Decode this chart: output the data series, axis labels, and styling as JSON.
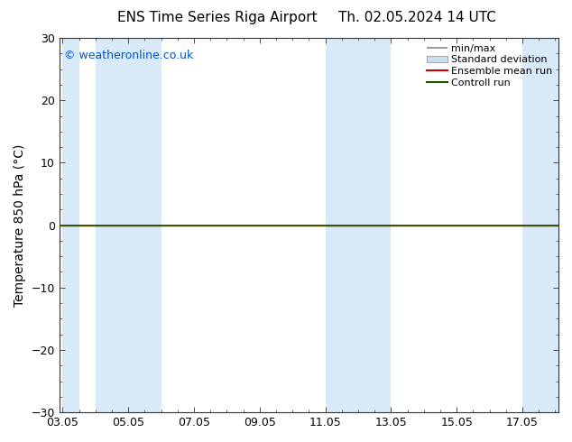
{
  "title_left": "ENS Time Series Riga Airport",
  "title_right": "Th. 02.05.2024 14 UTC",
  "ylabel": "Temperature 850 hPa (°C)",
  "xlabel_ticks": [
    "03.05",
    "05.05",
    "07.05",
    "09.05",
    "11.05",
    "13.05",
    "15.05",
    "17.05"
  ],
  "x_tick_positions": [
    0,
    2,
    4,
    6,
    8,
    10,
    12,
    14
  ],
  "xlim": [
    -0.1,
    15.1
  ],
  "ylim": [
    -30,
    30
  ],
  "yticks": [
    -30,
    -20,
    -10,
    0,
    10,
    20,
    30
  ],
  "background_color": "#ffffff",
  "plot_bg_color": "#ffffff",
  "watermark": "© weatheronline.co.uk",
  "watermark_color": "#0055cc",
  "shaded_color": "#d8eaf8",
  "band_positions": [
    [
      0.0,
      0.5
    ],
    [
      1.0,
      3.0
    ],
    [
      8.0,
      10.0
    ],
    [
      14.0,
      15.1
    ]
  ],
  "zero_line_color": "#1a5200",
  "ensemble_mean_color": "#cc0000",
  "control_run_color": "#1a5200",
  "minmax_color": "#888888",
  "stddev_color": "#c8dff0",
  "legend_labels": [
    "min/max",
    "Standard deviation",
    "Ensemble mean run",
    "Controll run"
  ],
  "title_fontsize": 11,
  "tick_label_fontsize": 9,
  "ylabel_fontsize": 10,
  "watermark_fontsize": 9,
  "legend_fontsize": 8
}
